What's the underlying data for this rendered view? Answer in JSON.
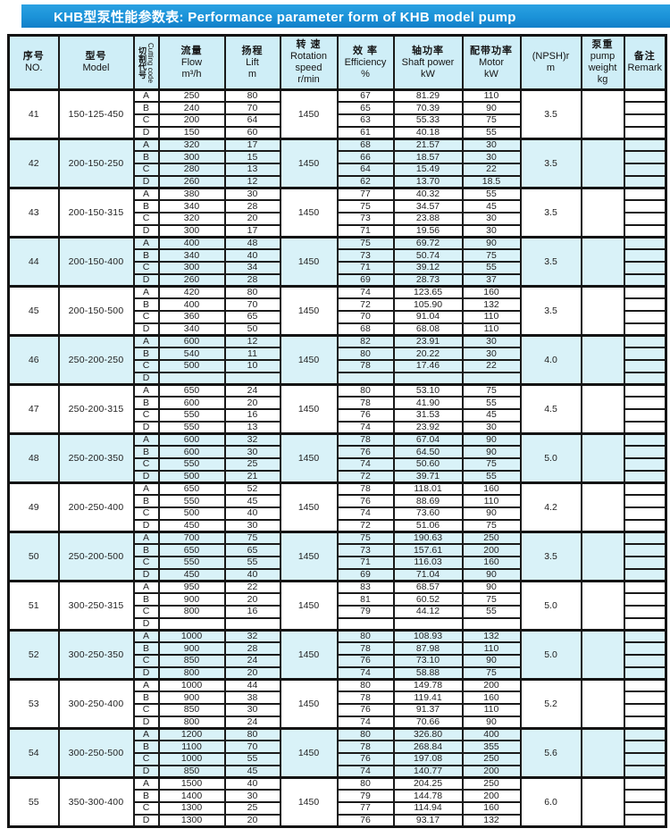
{
  "title": "KHB型泵性能参数表:  Performance parameter form of KHB model pump",
  "colors": {
    "title_bar_blue": "#1b92d8",
    "row_alt_cyan": "#d9f2f8",
    "header_cyan": "#cfeef7",
    "border_black": "#1a1a1a"
  },
  "table": {
    "columns": {
      "no": [
        "序号",
        "NO."
      ],
      "model": [
        "型号",
        "Model"
      ],
      "cutting": {
        "zh": "切割代号",
        "en": "Cutting code"
      },
      "flow": [
        "流量",
        "Flow",
        "m³/h"
      ],
      "lift": [
        "扬程",
        "Lift",
        "m"
      ],
      "speed": [
        "转 速",
        "Rotation",
        "speed",
        "r/min"
      ],
      "efficiency": [
        "效 率",
        "Efficiency",
        "%"
      ],
      "shaft": [
        "轴功率",
        "Shaft power",
        "kW"
      ],
      "motor": [
        "配带功率",
        "Motor",
        "kW"
      ],
      "npsh": [
        "(NPSH)r",
        "m"
      ],
      "weight": [
        "泵重",
        "pump",
        "weight",
        "kg"
      ],
      "remark": [
        "备注",
        "Remark"
      ]
    },
    "groups": [
      {
        "no": "41",
        "model": "150-125-450",
        "speed": "1450",
        "npsh": "3.5",
        "weight": "",
        "rows": [
          {
            "code": "A",
            "flow": "250",
            "lift": "80",
            "eff": "67",
            "shaft": "81.29",
            "motor": "110",
            "remark": ""
          },
          {
            "code": "B",
            "flow": "240",
            "lift": "70",
            "eff": "65",
            "shaft": "70.39",
            "motor": "90",
            "remark": ""
          },
          {
            "code": "C",
            "flow": "200",
            "lift": "64",
            "eff": "63",
            "shaft": "55.33",
            "motor": "75",
            "remark": ""
          },
          {
            "code": "D",
            "flow": "150",
            "lift": "60",
            "eff": "61",
            "shaft": "40.18",
            "motor": "55",
            "remark": ""
          }
        ]
      },
      {
        "no": "42",
        "model": "200-150-250",
        "speed": "1450",
        "npsh": "3.5",
        "weight": "",
        "rows": [
          {
            "code": "A",
            "flow": "320",
            "lift": "17",
            "eff": "68",
            "shaft": "21.57",
            "motor": "30",
            "remark": ""
          },
          {
            "code": "B",
            "flow": "300",
            "lift": "15",
            "eff": "66",
            "shaft": "18.57",
            "motor": "30",
            "remark": ""
          },
          {
            "code": "C",
            "flow": "280",
            "lift": "13",
            "eff": "64",
            "shaft": "15.49",
            "motor": "22",
            "remark": ""
          },
          {
            "code": "D",
            "flow": "260",
            "lift": "12",
            "eff": "62",
            "shaft": "13.70",
            "motor": "18.5",
            "remark": ""
          }
        ]
      },
      {
        "no": "43",
        "model": "200-150-315",
        "speed": "1450",
        "npsh": "3.5",
        "weight": "",
        "rows": [
          {
            "code": "A",
            "flow": "380",
            "lift": "30",
            "eff": "77",
            "shaft": "40.32",
            "motor": "55",
            "remark": ""
          },
          {
            "code": "B",
            "flow": "340",
            "lift": "28",
            "eff": "75",
            "shaft": "34.57",
            "motor": "45",
            "remark": ""
          },
          {
            "code": "C",
            "flow": "320",
            "lift": "20",
            "eff": "73",
            "shaft": "23.88",
            "motor": "30",
            "remark": ""
          },
          {
            "code": "D",
            "flow": "300",
            "lift": "17",
            "eff": "71",
            "shaft": "19.56",
            "motor": "30",
            "remark": ""
          }
        ]
      },
      {
        "no": "44",
        "model": "200-150-400",
        "speed": "1450",
        "npsh": "3.5",
        "weight": "",
        "rows": [
          {
            "code": "A",
            "flow": "400",
            "lift": "48",
            "eff": "75",
            "shaft": "69.72",
            "motor": "90",
            "remark": ""
          },
          {
            "code": "B",
            "flow": "340",
            "lift": "40",
            "eff": "73",
            "shaft": "50.74",
            "motor": "75",
            "remark": ""
          },
          {
            "code": "C",
            "flow": "300",
            "lift": "34",
            "eff": "71",
            "shaft": "39.12",
            "motor": "55",
            "remark": ""
          },
          {
            "code": "D",
            "flow": "260",
            "lift": "28",
            "eff": "69",
            "shaft": "28.73",
            "motor": "37",
            "remark": ""
          }
        ]
      },
      {
        "no": "45",
        "model": "200-150-500",
        "speed": "1450",
        "npsh": "3.5",
        "weight": "",
        "rows": [
          {
            "code": "A",
            "flow": "420",
            "lift": "80",
            "eff": "74",
            "shaft": "123.65",
            "motor": "160",
            "remark": ""
          },
          {
            "code": "B",
            "flow": "400",
            "lift": "70",
            "eff": "72",
            "shaft": "105.90",
            "motor": "132",
            "remark": ""
          },
          {
            "code": "C",
            "flow": "360",
            "lift": "65",
            "eff": "70",
            "shaft": "91.04",
            "motor": "110",
            "remark": ""
          },
          {
            "code": "D",
            "flow": "340",
            "lift": "50",
            "eff": "68",
            "shaft": "68.08",
            "motor": "110",
            "remark": ""
          }
        ]
      },
      {
        "no": "46",
        "model": "250-200-250",
        "speed": "1450",
        "npsh": "4.0",
        "weight": "",
        "rows": [
          {
            "code": "A",
            "flow": "600",
            "lift": "12",
            "eff": "82",
            "shaft": "23.91",
            "motor": "30",
            "remark": ""
          },
          {
            "code": "B",
            "flow": "540",
            "lift": "11",
            "eff": "80",
            "shaft": "20.22",
            "motor": "30",
            "remark": ""
          },
          {
            "code": "C",
            "flow": "500",
            "lift": "10",
            "eff": "78",
            "shaft": "17.46",
            "motor": "22",
            "remark": ""
          },
          {
            "code": "D",
            "flow": "",
            "lift": "",
            "eff": "",
            "shaft": "",
            "motor": "",
            "remark": ""
          }
        ]
      },
      {
        "no": "47",
        "model": "250-200-315",
        "speed": "1450",
        "npsh": "4.5",
        "weight": "",
        "rows": [
          {
            "code": "A",
            "flow": "650",
            "lift": "24",
            "eff": "80",
            "shaft": "53.10",
            "motor": "75",
            "remark": ""
          },
          {
            "code": "B",
            "flow": "600",
            "lift": "20",
            "eff": "78",
            "shaft": "41.90",
            "motor": "55",
            "remark": ""
          },
          {
            "code": "C",
            "flow": "550",
            "lift": "16",
            "eff": "76",
            "shaft": "31.53",
            "motor": "45",
            "remark": ""
          },
          {
            "code": "D",
            "flow": "550",
            "lift": "13",
            "eff": "74",
            "shaft": "23.92",
            "motor": "30",
            "remark": ""
          }
        ]
      },
      {
        "no": "48",
        "model": "250-200-350",
        "speed": "1450",
        "npsh": "5.0",
        "weight": "",
        "rows": [
          {
            "code": "A",
            "flow": "600",
            "lift": "32",
            "eff": "78",
            "shaft": "67.04",
            "motor": "90",
            "remark": ""
          },
          {
            "code": "B",
            "flow": "600",
            "lift": "30",
            "eff": "76",
            "shaft": "64.50",
            "motor": "90",
            "remark": ""
          },
          {
            "code": "C",
            "flow": "550",
            "lift": "25",
            "eff": "74",
            "shaft": "50.60",
            "motor": "75",
            "remark": ""
          },
          {
            "code": "D",
            "flow": "500",
            "lift": "21",
            "eff": "72",
            "shaft": "39.71",
            "motor": "55",
            "remark": ""
          }
        ]
      },
      {
        "no": "49",
        "model": "200-250-400",
        "speed": "1450",
        "npsh": "4.2",
        "weight": "",
        "rows": [
          {
            "code": "A",
            "flow": "650",
            "lift": "52",
            "eff": "78",
            "shaft": "118.01",
            "motor": "160",
            "remark": ""
          },
          {
            "code": "B",
            "flow": "550",
            "lift": "45",
            "eff": "76",
            "shaft": "88.69",
            "motor": "110",
            "remark": ""
          },
          {
            "code": "C",
            "flow": "500",
            "lift": "40",
            "eff": "74",
            "shaft": "73.60",
            "motor": "90",
            "remark": ""
          },
          {
            "code": "D",
            "flow": "450",
            "lift": "30",
            "eff": "72",
            "shaft": "51.06",
            "motor": "75",
            "remark": ""
          }
        ]
      },
      {
        "no": "50",
        "model": "250-200-500",
        "speed": "1450",
        "npsh": "3.5",
        "weight": "",
        "rows": [
          {
            "code": "A",
            "flow": "700",
            "lift": "75",
            "eff": "75",
            "shaft": "190.63",
            "motor": "250",
            "remark": ""
          },
          {
            "code": "B",
            "flow": "650",
            "lift": "65",
            "eff": "73",
            "shaft": "157.61",
            "motor": "200",
            "remark": ""
          },
          {
            "code": "C",
            "flow": "550",
            "lift": "55",
            "eff": "71",
            "shaft": "116.03",
            "motor": "160",
            "remark": ""
          },
          {
            "code": "D",
            "flow": "450",
            "lift": "40",
            "eff": "69",
            "shaft": "71.04",
            "motor": "90",
            "remark": ""
          }
        ]
      },
      {
        "no": "51",
        "model": "300-250-315",
        "speed": "1450",
        "npsh": "5.0",
        "weight": "",
        "rows": [
          {
            "code": "A",
            "flow": "950",
            "lift": "22",
            "eff": "83",
            "shaft": "68.57",
            "motor": "90",
            "remark": ""
          },
          {
            "code": "B",
            "flow": "900",
            "lift": "20",
            "eff": "81",
            "shaft": "60.52",
            "motor": "75",
            "remark": ""
          },
          {
            "code": "C",
            "flow": "800",
            "lift": "16",
            "eff": "79",
            "shaft": "44.12",
            "motor": "55",
            "remark": ""
          },
          {
            "code": "D",
            "flow": "",
            "lift": "",
            "eff": "",
            "shaft": "",
            "motor": "",
            "remark": ""
          }
        ]
      },
      {
        "no": "52",
        "model": "300-250-350",
        "speed": "1450",
        "npsh": "5.0",
        "weight": "",
        "rows": [
          {
            "code": "A",
            "flow": "1000",
            "lift": "32",
            "eff": "80",
            "shaft": "108.93",
            "motor": "132",
            "remark": ""
          },
          {
            "code": "B",
            "flow": "900",
            "lift": "28",
            "eff": "78",
            "shaft": "87.98",
            "motor": "110",
            "remark": ""
          },
          {
            "code": "C",
            "flow": "850",
            "lift": "24",
            "eff": "76",
            "shaft": "73.10",
            "motor": "90",
            "remark": ""
          },
          {
            "code": "D",
            "flow": "800",
            "lift": "20",
            "eff": "74",
            "shaft": "58.88",
            "motor": "75",
            "remark": ""
          }
        ]
      },
      {
        "no": "53",
        "model": "300-250-400",
        "speed": "1450",
        "npsh": "5.2",
        "weight": "",
        "rows": [
          {
            "code": "A",
            "flow": "1000",
            "lift": "44",
            "eff": "80",
            "shaft": "149.78",
            "motor": "200",
            "remark": ""
          },
          {
            "code": "B",
            "flow": "900",
            "lift": "38",
            "eff": "78",
            "shaft": "119.41",
            "motor": "160",
            "remark": ""
          },
          {
            "code": "C",
            "flow": "850",
            "lift": "30",
            "eff": "76",
            "shaft": "91.37",
            "motor": "110",
            "remark": ""
          },
          {
            "code": "D",
            "flow": "800",
            "lift": "24",
            "eff": "74",
            "shaft": "70.66",
            "motor": "90",
            "remark": ""
          }
        ]
      },
      {
        "no": "54",
        "model": "300-250-500",
        "speed": "1450",
        "npsh": "5.6",
        "weight": "",
        "rows": [
          {
            "code": "A",
            "flow": "1200",
            "lift": "80",
            "eff": "80",
            "shaft": "326.80",
            "motor": "400",
            "remark": ""
          },
          {
            "code": "B",
            "flow": "1100",
            "lift": "70",
            "eff": "78",
            "shaft": "268.84",
            "motor": "355",
            "remark": ""
          },
          {
            "code": "C",
            "flow": "1000",
            "lift": "55",
            "eff": "76",
            "shaft": "197.08",
            "motor": "250",
            "remark": ""
          },
          {
            "code": "D",
            "flow": "850",
            "lift": "45",
            "eff": "74",
            "shaft": "140.77",
            "motor": "200",
            "remark": ""
          }
        ]
      },
      {
        "no": "55",
        "model": "350-300-400",
        "speed": "1450",
        "npsh": "6.0",
        "weight": "",
        "rows": [
          {
            "code": "A",
            "flow": "1500",
            "lift": "40",
            "eff": "80",
            "shaft": "204.25",
            "motor": "250",
            "remark": ""
          },
          {
            "code": "B",
            "flow": "1400",
            "lift": "30",
            "eff": "79",
            "shaft": "144.78",
            "motor": "200",
            "remark": ""
          },
          {
            "code": "C",
            "flow": "1300",
            "lift": "25",
            "eff": "77",
            "shaft": "114.94",
            "motor": "160",
            "remark": ""
          },
          {
            "code": "D",
            "flow": "1300",
            "lift": "20",
            "eff": "76",
            "shaft": "93.17",
            "motor": "132",
            "remark": ""
          }
        ]
      }
    ]
  }
}
